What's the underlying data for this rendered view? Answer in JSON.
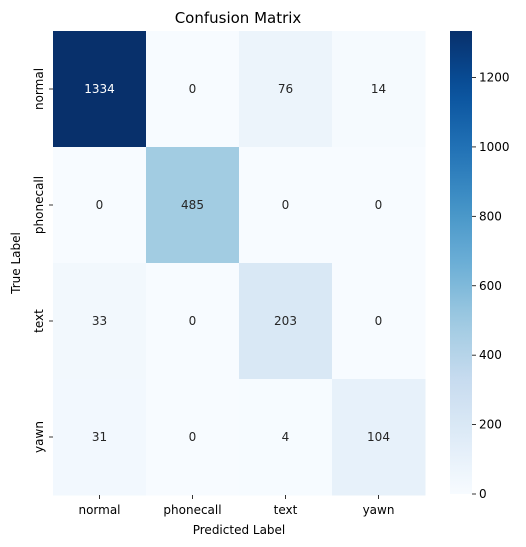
{
  "chart_data": {
    "type": "heatmap",
    "title": "Confusion Matrix",
    "xlabel": "Predicted Label",
    "ylabel": "True Label",
    "x_categories": [
      "normal",
      "phonecall",
      "text",
      "yawn"
    ],
    "y_categories": [
      "normal",
      "phonecall",
      "text",
      "yawn"
    ],
    "values": [
      [
        1334,
        0,
        76,
        14
      ],
      [
        0,
        485,
        0,
        0
      ],
      [
        33,
        0,
        203,
        0
      ],
      [
        31,
        0,
        4,
        104
      ]
    ],
    "colormap": "Blues",
    "value_range": [
      0,
      1334
    ],
    "colorbar": {
      "ticks": [
        0,
        200,
        400,
        600,
        800,
        1000,
        1200
      ]
    },
    "grid": false
  }
}
